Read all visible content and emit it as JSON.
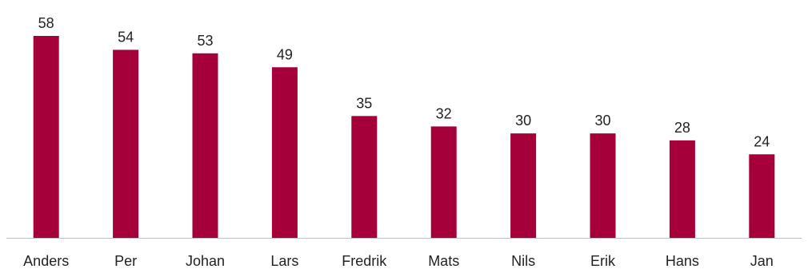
{
  "chart_data": {
    "type": "bar",
    "categories": [
      "Anders",
      "Per",
      "Johan",
      "Lars",
      "Fredrik",
      "Mats",
      "Nils",
      "Erik",
      "Hans",
      "Jan"
    ],
    "values": [
      58,
      54,
      53,
      49,
      35,
      32,
      30,
      30,
      28,
      24
    ],
    "title": "",
    "xlabel": "",
    "ylabel": "",
    "ylim": [
      0,
      58
    ],
    "grid": false,
    "legend": "none",
    "data_labels": true,
    "colors": {
      "bar": "#A6003A",
      "axis": "#BFBFBF",
      "text": "#222222"
    }
  }
}
